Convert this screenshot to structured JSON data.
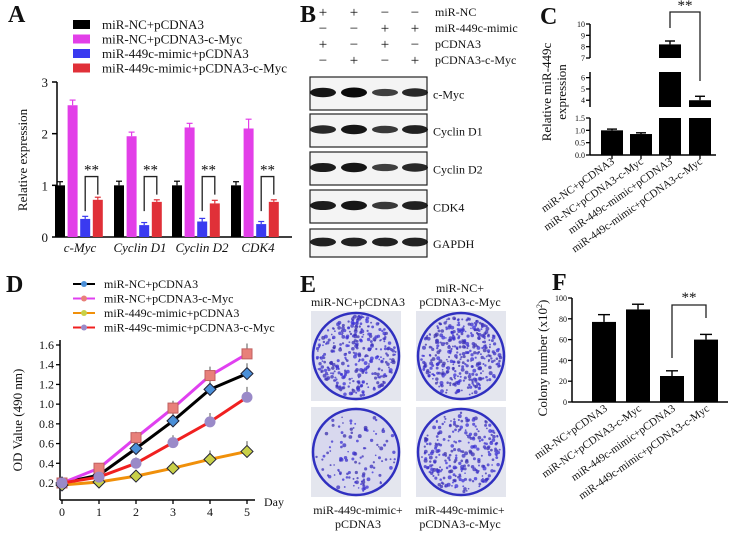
{
  "panel_labels": [
    "A",
    "B",
    "C",
    "D",
    "E",
    "F"
  ],
  "chart_data": [
    {
      "panel": "A",
      "type": "bar",
      "ylabel": "Relative expression",
      "ylim": [
        0,
        3
      ],
      "yticks": [
        "0",
        "1",
        "2",
        "3"
      ],
      "categories": [
        "c-Myc",
        "Cyclin D1",
        "Cyclin D2",
        "CDK4"
      ],
      "series": [
        {
          "name": "miR-NC+pCDNA3",
          "color": "#000000",
          "values": [
            1.0,
            1.0,
            1.0,
            1.0
          ],
          "errors": [
            0.07,
            0.08,
            0.08,
            0.07
          ]
        },
        {
          "name": "miR-NC+pCDNA3-c-Myc",
          "color": "#e23fe8",
          "values": [
            2.55,
            1.95,
            2.12,
            2.1
          ],
          "errors": [
            0.1,
            0.08,
            0.08,
            0.18
          ]
        },
        {
          "name": "miR-449c-mimic+pCDNA3",
          "color": "#3a3af0",
          "values": [
            0.35,
            0.23,
            0.3,
            0.25
          ],
          "errors": [
            0.05,
            0.05,
            0.06,
            0.05
          ]
        },
        {
          "name": "miR-449c-mimic+pCDNA3-c-Myc",
          "color": "#e03038",
          "values": [
            0.72,
            0.68,
            0.65,
            0.68
          ],
          "errors": [
            0.05,
            0.04,
            0.06,
            0.04
          ]
        }
      ],
      "significance": "**",
      "legend": "top"
    },
    {
      "panel": "C",
      "type": "bar",
      "ylabel": [
        "Relative miR-449c",
        "expression"
      ],
      "broken_axis": true,
      "yticks": [
        "0.0",
        "0.5",
        "1.0",
        "1.5",
        "4",
        "5",
        "6",
        "7",
        "8",
        "9",
        "10"
      ],
      "categories": [
        "miR-NC+pCDNA3",
        "miR-NC+pCDNA3-c-Myc",
        "miR-449c-mimic+pCDNA3",
        "miR-449c-mimic+pCDNA3-c-Myc"
      ],
      "values": [
        1.0,
        0.85,
        8.2,
        4.0
      ],
      "errors": [
        0.05,
        0.05,
        0.3,
        0.35
      ],
      "significance": "**"
    },
    {
      "panel": "D",
      "type": "line",
      "xlabel": "Day",
      "ylabel": "OD Value (490 nm)",
      "x": [
        0,
        1,
        2,
        3,
        4,
        5
      ],
      "ylim": [
        0.1,
        1.65
      ],
      "yticks": [
        "0.2",
        "0.4",
        "0.6",
        "0.8",
        "1.0",
        "1.2",
        "1.4",
        "1.6"
      ],
      "xticks": [
        "0",
        "1",
        "2",
        "3",
        "4",
        "5"
      ],
      "series": [
        {
          "name": "miR-NC+pCDNA3",
          "color": "#000000",
          "marker_color": "#4a8fd8",
          "marker": "diamond",
          "values": [
            0.2,
            0.28,
            0.55,
            0.83,
            1.15,
            1.31
          ]
        },
        {
          "name": "miR-NC+pCDNA3-c-Myc",
          "color": "#e040f0",
          "marker_color": "#e8807a",
          "marker": "square",
          "values": [
            0.2,
            0.35,
            0.66,
            0.96,
            1.29,
            1.51
          ]
        },
        {
          "name": "miR-449c-mimic+pCDNA3",
          "color": "#f0900a",
          "marker_color": "#c8d048",
          "marker": "diamond",
          "values": [
            0.18,
            0.21,
            0.27,
            0.35,
            0.44,
            0.52
          ]
        },
        {
          "name": "miR-449c-mimic+pCDNA3-c-Myc",
          "color": "#f02020",
          "marker_color": "#9a8ac8",
          "marker": "circle",
          "values": [
            0.2,
            0.26,
            0.4,
            0.61,
            0.82,
            1.07
          ]
        }
      ],
      "legend": "top"
    },
    {
      "panel": "F",
      "type": "bar",
      "ylabel": "Colony number (x10",
      "ylabel_sup": "2",
      "ylabel_end": ")",
      "ylim": [
        0,
        100
      ],
      "yticks": [
        "0",
        "20",
        "40",
        "60",
        "80",
        "100"
      ],
      "categories": [
        "miR-NC+pCDNA3",
        "miR-NC+pCDNA3-c-Myc",
        "miR-449c-mimic+pCDNA3",
        "miR-449c-mimic+pCDNA3-c-Myc"
      ],
      "values": [
        77,
        89,
        25,
        60
      ],
      "errors": [
        7,
        5,
        5,
        5
      ],
      "significance": "**"
    }
  ],
  "western_blot": {
    "conditions": [
      {
        "name": "miR-NC",
        "signs": [
          "+",
          "+",
          "−",
          "−"
        ]
      },
      {
        "name": "miR-449c-mimic",
        "signs": [
          "−",
          "−",
          "+",
          "+"
        ]
      },
      {
        "name": "pCDNA3",
        "signs": [
          "+",
          "−",
          "+",
          "−"
        ]
      },
      {
        "name": "pCDNA3-c-Myc",
        "signs": [
          "−",
          "+",
          "−",
          "+"
        ]
      }
    ],
    "bands": [
      {
        "name": "c-Myc",
        "intensity": [
          0.9,
          1.0,
          0.55,
          0.75
        ]
      },
      {
        "name": "Cyclin D1",
        "intensity": [
          0.75,
          0.9,
          0.6,
          0.8
        ]
      },
      {
        "name": "Cyclin D2",
        "intensity": [
          0.85,
          0.9,
          0.55,
          0.75
        ]
      },
      {
        "name": "CDK4",
        "intensity": [
          0.85,
          0.9,
          0.6,
          0.8
        ]
      },
      {
        "name": "GAPDH",
        "intensity": [
          0.8,
          0.8,
          0.8,
          0.8
        ]
      }
    ]
  },
  "colony_plates": [
    {
      "label": [
        "",
        "miR-NC+pCDNA3"
      ],
      "density": 0.85
    },
    {
      "label": [
        "miR-NC+",
        "pCDNA3-c-Myc"
      ],
      "density": 0.95
    },
    {
      "label": [
        "miR-449c-mimic+",
        "pCDNA3"
      ],
      "density": 0.3
    },
    {
      "label": [
        "miR-449c-mimic+",
        "pCDNA3-c-Myc"
      ],
      "density": 0.7
    }
  ]
}
